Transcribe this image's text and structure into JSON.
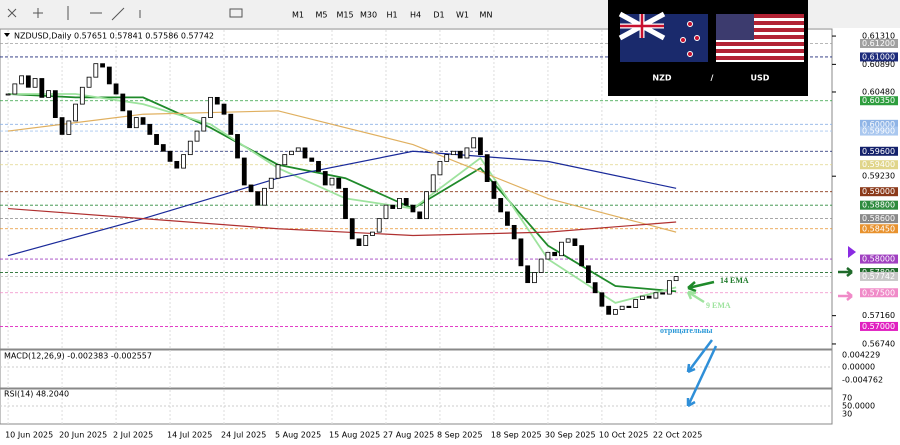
{
  "toolbar": {
    "timeframes": [
      "M1",
      "M5",
      "M15",
      "M30",
      "H1",
      "H4",
      "D1",
      "W1",
      "MN"
    ]
  },
  "banner": {
    "base": "NZD",
    "separator": "/",
    "quote": "USD"
  },
  "chart_data": {
    "type": "candlestick",
    "title": "NZDUSD,Daily 0.57651 0.57841 0.57586 0.57742",
    "close": [
      0.6045,
      0.606,
      0.6072,
      0.6055,
      0.6068,
      0.604,
      0.605,
      0.601,
      0.5985,
      0.6005,
      0.603,
      0.6055,
      0.607,
      0.609,
      0.6085,
      0.606,
      0.6045,
      0.602,
      0.5995,
      0.601,
      0.6,
      0.5985,
      0.597,
      0.596,
      0.5945,
      0.5935,
      0.5955,
      0.5975,
      0.599,
      0.601,
      0.604,
      0.603,
      0.6015,
      0.5985,
      0.595,
      0.591,
      0.59,
      0.588,
      0.5905,
      0.592,
      0.594,
      0.5955,
      0.596,
      0.5965,
      0.595,
      0.5945,
      0.593,
      0.591,
      0.592,
      0.5905,
      0.586,
      0.583,
      0.582,
      0.5835,
      0.584,
      0.586,
      0.588,
      0.5875,
      0.589,
      0.588,
      0.587,
      0.586,
      0.59,
      0.5925,
      0.5945,
      0.5955,
      0.596,
      0.595,
      0.5965,
      0.598,
      0.5955,
      0.5915,
      0.589,
      0.587,
      0.585,
      0.583,
      0.579,
      0.5765,
      0.578,
      0.58,
      0.581,
      0.5805,
      0.5825,
      0.583,
      0.582,
      0.579,
      0.5765,
      0.575,
      0.573,
      0.5718,
      0.5725,
      0.573,
      0.5728,
      0.574,
      0.5745,
      0.5742,
      0.575,
      0.5748,
      0.5768,
      0.5774
    ],
    "xlim": [
      -1.2,
      122.1
    ],
    "ylim": [
      0.5668,
      0.614
    ],
    "xticks": [
      {
        "value": 0,
        "label": "10 Jun 2025"
      },
      {
        "value": 8,
        "label": "20 Jun 2025"
      },
      {
        "value": 16,
        "label": "2 Jul 2025"
      },
      {
        "value": 24,
        "label": "14 Jul 2025"
      },
      {
        "value": 32,
        "label": "24 Jul 2025"
      },
      {
        "value": 40,
        "label": "5 Aug 2025"
      },
      {
        "value": 48,
        "label": "15 Aug 2025"
      },
      {
        "value": 56,
        "label": "27 Aug 2025"
      },
      {
        "value": 64,
        "label": "8 Sep 2025"
      },
      {
        "value": 72,
        "label": "18 Sep 2025"
      },
      {
        "value": 80,
        "label": "30 Sep 2025"
      },
      {
        "value": 88,
        "label": "10 Oct 2025"
      },
      {
        "value": 96,
        "label": "22 Oct 2025"
      }
    ],
    "yticks": [
      {
        "value": 0.6131,
        "label": "0.61310"
      },
      {
        "value": 0.6089,
        "label": "0.60890"
      },
      {
        "value": 0.6048,
        "label": "0.60480"
      },
      {
        "value": 0.5923,
        "label": "0.59230"
      },
      {
        "value": 0.5716,
        "label": "0.57160"
      },
      {
        "value": 0.5674,
        "label": "0.56740"
      }
    ],
    "levels": [
      {
        "value": 0.612,
        "label": "0.61200",
        "color": "#a0a0a0"
      },
      {
        "value": 0.61,
        "label": "0.61000",
        "color": "#1c2a7a"
      },
      {
        "value": 0.6035,
        "label": "0.60350",
        "color": "#2e9e3e"
      },
      {
        "value": 0.6,
        "label": "0.60000",
        "color": "#8fb4e6"
      },
      {
        "value": 0.599,
        "label": "0.59900",
        "color": "#a9c7ef"
      },
      {
        "value": 0.596,
        "label": "0.59600",
        "color": "#13206b"
      },
      {
        "value": 0.594,
        "label": "0.59400",
        "color": "#e0d58a"
      },
      {
        "value": 0.59,
        "label": "0.59000",
        "color": "#8b3a1a"
      },
      {
        "value": 0.588,
        "label": "0.58800",
        "color": "#2e8b3e"
      },
      {
        "value": 0.586,
        "label": "0.58600",
        "color": "#8a8a8a"
      },
      {
        "value": 0.5845,
        "label": "0.58450",
        "color": "#e8922e"
      },
      {
        "value": 0.58,
        "label": "0.58000",
        "color": "#a040c0"
      },
      {
        "value": 0.578,
        "label": "0.57800",
        "color": "#1e6a2a"
      },
      {
        "value": 0.57742,
        "label": "0.57742",
        "color": "#c8c8c8"
      },
      {
        "value": 0.575,
        "label": "0.57500",
        "color": "#f08ac8"
      },
      {
        "value": 0.57,
        "label": "0.57000",
        "color": "#e020c0"
      }
    ],
    "series": [
      {
        "name": "14 EMA",
        "color": "#1f8a2a",
        "x": [
          0,
          10,
          20,
          30,
          40,
          50,
          60,
          70,
          80,
          90,
          99
        ],
        "values": [
          0.6045,
          0.604,
          0.604,
          0.5995,
          0.594,
          0.592,
          0.5875,
          0.5935,
          0.582,
          0.576,
          0.5752
        ]
      },
      {
        "name": "9 EMA",
        "color": "#9ee39e",
        "x": [
          0,
          10,
          20,
          30,
          40,
          50,
          60,
          70,
          80,
          90,
          99
        ],
        "values": [
          0.6045,
          0.6045,
          0.603,
          0.6,
          0.5935,
          0.589,
          0.5875,
          0.595,
          0.58,
          0.5735,
          0.5758
        ]
      },
      {
        "color": "#1a2a9a",
        "x": [
          0,
          20,
          40,
          60,
          80,
          99
        ],
        "values": [
          0.5805,
          0.586,
          0.592,
          0.596,
          0.5945,
          0.5905
        ]
      },
      {
        "color": "#e0b060",
        "x": [
          0,
          20,
          40,
          60,
          80,
          99
        ],
        "values": [
          0.599,
          0.6015,
          0.602,
          0.597,
          0.589,
          0.584
        ]
      },
      {
        "color": "#b03030",
        "x": [
          0,
          20,
          40,
          60,
          80,
          99
        ],
        "values": [
          0.5875,
          0.586,
          0.5845,
          0.5835,
          0.584,
          0.5855
        ]
      }
    ],
    "annotation": "отрицательны"
  },
  "macd": {
    "title": "MACD(12,26,9) -0.002383 -0.002557",
    "ticks": [
      "0.004229",
      "0.00000",
      "-0.004762"
    ]
  },
  "rsi": {
    "title": "RSI(14) 48.2040",
    "ticks": [
      "70",
      "50.0000",
      "30"
    ]
  }
}
